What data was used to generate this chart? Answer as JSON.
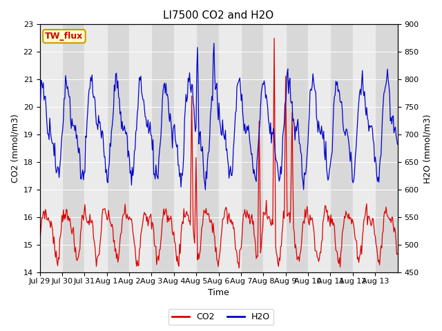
{
  "title": "LI7500 CO2 and H2O",
  "xlabel": "Time",
  "ylabel_left": "CO2 (mmol/m3)",
  "ylabel_right": "H2O (mmol/m3)",
  "co2_ylim": [
    14.0,
    23.0
  ],
  "h2o_ylim": [
    450,
    900
  ],
  "co2_yticks": [
    14.0,
    15.0,
    16.0,
    17.0,
    18.0,
    19.0,
    20.0,
    21.0,
    22.0,
    23.0
  ],
  "h2o_yticks": [
    450,
    500,
    550,
    600,
    650,
    700,
    750,
    800,
    850,
    900
  ],
  "co2_color": "#dd0000",
  "h2o_color": "#0000cc",
  "background_color": "#ffffff",
  "plot_bg_dark": "#d8d8d8",
  "plot_bg_light": "#ebebeb",
  "annotation_text": "TW_flux",
  "annotation_bg": "#ffffcc",
  "annotation_border": "#cc9900",
  "title_fontsize": 11,
  "label_fontsize": 9,
  "tick_fontsize": 8,
  "legend_fontsize": 9,
  "xtick_labels": [
    "Jul 29",
    "Jul 30",
    "Jul 31",
    "Aug 1",
    "Aug 2",
    "Aug 3",
    "Aug 4",
    "Aug 5",
    "Aug 6",
    "Aug 7",
    "Aug 8",
    "Aug 9",
    "Aug 10",
    "Aug 11",
    "Aug 12",
    "Aug 13"
  ],
  "num_points": 500,
  "seed": 7
}
